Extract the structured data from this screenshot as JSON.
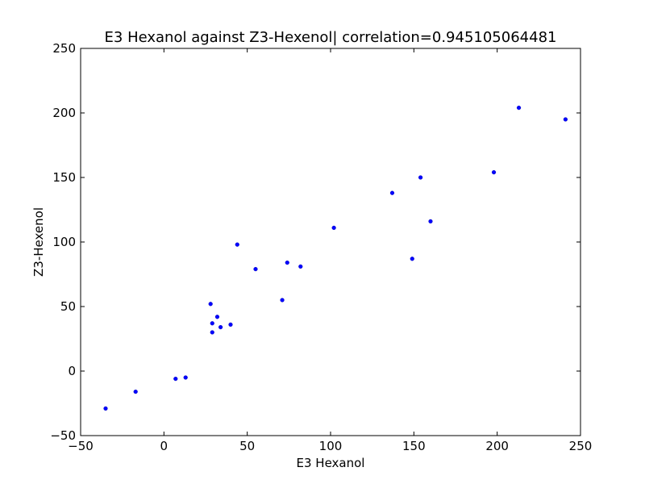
{
  "chart_data": {
    "type": "scatter",
    "title": "E3 Hexanol against Z3-Hexenol| correlation=0.945105064481",
    "xlabel": "E3 Hexanol",
    "ylabel": "Z3-Hexenol",
    "xlim": [
      -50,
      250
    ],
    "ylim": [
      -50,
      250
    ],
    "xticks": [
      -50,
      0,
      50,
      100,
      150,
      200,
      250
    ],
    "yticks": [
      -50,
      0,
      50,
      100,
      150,
      200,
      250
    ],
    "grid": false,
    "marker_color": "#0000ff",
    "points": [
      {
        "x": -35,
        "y": -29
      },
      {
        "x": -17,
        "y": -16
      },
      {
        "x": 7,
        "y": -6
      },
      {
        "x": 13,
        "y": -5
      },
      {
        "x": 28,
        "y": 52
      },
      {
        "x": 29,
        "y": 37
      },
      {
        "x": 29,
        "y": 30
      },
      {
        "x": 32,
        "y": 42
      },
      {
        "x": 34,
        "y": 34
      },
      {
        "x": 40,
        "y": 36
      },
      {
        "x": 44,
        "y": 98
      },
      {
        "x": 55,
        "y": 79
      },
      {
        "x": 71,
        "y": 55
      },
      {
        "x": 74,
        "y": 84
      },
      {
        "x": 82,
        "y": 81
      },
      {
        "x": 102,
        "y": 111
      },
      {
        "x": 137,
        "y": 138
      },
      {
        "x": 149,
        "y": 87
      },
      {
        "x": 154,
        "y": 150
      },
      {
        "x": 160,
        "y": 116
      },
      {
        "x": 198,
        "y": 154
      },
      {
        "x": 213,
        "y": 204
      },
      {
        "x": 241,
        "y": 195
      }
    ]
  }
}
